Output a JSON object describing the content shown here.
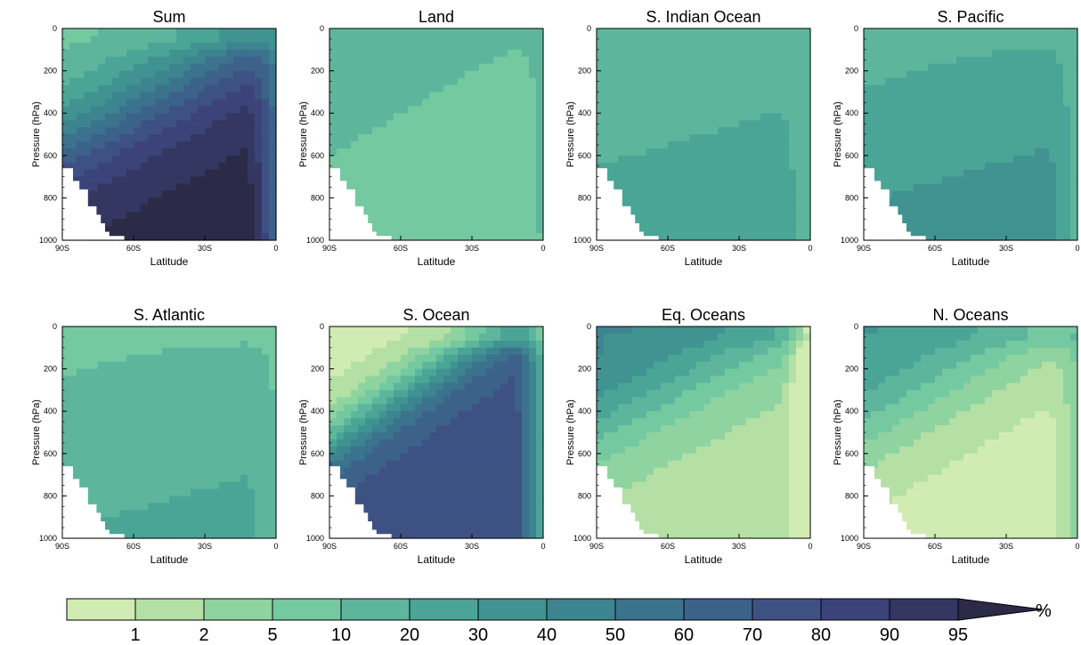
{
  "colorbar": {
    "levels": [
      "1",
      "2",
      "5",
      "10",
      "20",
      "30",
      "40",
      "50",
      "60",
      "70",
      "80",
      "90",
      "95"
    ],
    "unit": "%",
    "colors": [
      "#d1ecb3",
      "#b4e0a5",
      "#8fd3a0",
      "#74c9a0",
      "#5db69c",
      "#4aa597",
      "#409391",
      "#3c8490",
      "#3b728d",
      "#3c6289",
      "#3e5183",
      "#3c4379",
      "#343761",
      "#2b2a47"
    ]
  },
  "chart_data": [
    {
      "type": "heatmap",
      "title": "Sum",
      "ylabel": "Pressure (hPa)",
      "xlabel": "Latitude",
      "xlim": [
        "90S",
        "0"
      ],
      "xticks": [
        "90S",
        "60S",
        "30S",
        "0"
      ],
      "ylim": [
        0,
        1000
      ],
      "yticks": [
        "0",
        "200",
        "400",
        "600",
        "800",
        "1000"
      ],
      "field": {
        "top": 3,
        "bottom": 13,
        "band_top": 3,
        "band_bottom": 12,
        "mid_depth": 0.28,
        "sharp": 6,
        "skew": 0.55,
        "equator_low": 5
      }
    },
    {
      "type": "heatmap",
      "title": "Land",
      "ylabel": "Pressure (hPa)",
      "xlabel": "Latitude",
      "xlim": [
        "90S",
        "0"
      ],
      "xticks": [
        "90S",
        "60S",
        "30S",
        "0"
      ],
      "ylim": [
        0,
        1000
      ],
      "yticks": [
        "0",
        "200",
        "400",
        "600",
        "800",
        "1000"
      ],
      "field": {
        "top": 4,
        "bottom": 3,
        "band_top": 4,
        "band_bottom": 2,
        "mid_depth": 0.3,
        "sharp": 5,
        "skew": 0.6,
        "equator_low": 4
      }
    },
    {
      "type": "heatmap",
      "title": "S. Indian Ocean",
      "ylabel": "Pressure (hPa)",
      "xlabel": "Latitude",
      "xlim": [
        "90S",
        "0"
      ],
      "xticks": [
        "90S",
        "60S",
        "30S",
        "0"
      ],
      "ylim": [
        0,
        1000
      ],
      "yticks": [
        "0",
        "200",
        "400",
        "600",
        "800",
        "1000"
      ],
      "field": {
        "top": 4,
        "bottom": 5,
        "band_top": 4,
        "band_bottom": 5,
        "mid_depth": 0.5,
        "sharp": 4,
        "skew": 0.3,
        "equator_low": 3
      }
    },
    {
      "type": "heatmap",
      "title": "S. Pacific",
      "ylabel": "Pressure (hPa)",
      "xlabel": "Latitude",
      "xlim": [
        "90S",
        "0"
      ],
      "xticks": [
        "90S",
        "60S",
        "30S",
        "0"
      ],
      "ylim": [
        0,
        1000
      ],
      "yticks": [
        "0",
        "200",
        "400",
        "600",
        "800",
        "1000"
      ],
      "field": {
        "top": 4,
        "bottom": 6,
        "band_top": 4,
        "band_bottom": 5,
        "mid_depth": 0.4,
        "sharp": 4,
        "skew": 0.3,
        "equator_low": 3
      }
    },
    {
      "type": "heatmap",
      "title": "S. Atlantic",
      "ylabel": "Pressure (hPa)",
      "xlabel": "Latitude",
      "xlim": [
        "90S",
        "0"
      ],
      "xticks": [
        "90S",
        "60S",
        "30S",
        "0"
      ],
      "ylim": [
        0,
        1000
      ],
      "yticks": [
        "0",
        "200",
        "400",
        "600",
        "800",
        "1000"
      ],
      "field": {
        "top": 3,
        "bottom": 5,
        "band_top": 3,
        "band_bottom": 4,
        "mid_depth": 0.45,
        "sharp": 3,
        "skew": 0.3,
        "equator_low": 3
      }
    },
    {
      "type": "heatmap",
      "title": "S. Ocean",
      "ylabel": "Pressure (hPa)",
      "xlabel": "Latitude",
      "xlim": [
        "90S",
        "0"
      ],
      "xticks": [
        "90S",
        "60S",
        "30S",
        "0"
      ],
      "ylim": [
        0,
        1000
      ],
      "yticks": [
        "0",
        "200",
        "400",
        "600",
        "800",
        "1000"
      ],
      "field": {
        "top": 0,
        "bottom": 10,
        "band_top": 0,
        "band_bottom": 9,
        "mid_depth": 0.2,
        "sharp": 10,
        "skew": 0.7,
        "equator_low": 0
      }
    },
    {
      "type": "heatmap",
      "title": "Eq. Oceans",
      "ylabel": "Pressure (hPa)",
      "xlabel": "Latitude",
      "xlim": [
        "90S",
        "0"
      ],
      "xticks": [
        "90S",
        "60S",
        "30S",
        "0"
      ],
      "ylim": [
        0,
        1000
      ],
      "yticks": [
        "0",
        "200",
        "400",
        "600",
        "800",
        "1000"
      ],
      "field": {
        "top": 7,
        "bottom": 1,
        "band_top": 6,
        "band_bottom": 1,
        "mid_depth": 0.22,
        "sharp": 7,
        "skew": 0.55,
        "equator_low": -6
      }
    },
    {
      "type": "heatmap",
      "title": "N. Oceans",
      "ylabel": "Pressure (hPa)",
      "xlabel": "Latitude",
      "xlim": [
        "90S",
        "0"
      ],
      "xticks": [
        "90S",
        "60S",
        "30S",
        "0"
      ],
      "ylim": [
        0,
        1000
      ],
      "yticks": [
        "0",
        "200",
        "400",
        "600",
        "800",
        "1000"
      ],
      "field": {
        "top": 6,
        "bottom": 0,
        "band_top": 5,
        "band_bottom": 0,
        "mid_depth": 0.2,
        "sharp": 6,
        "skew": 0.6,
        "equator_low": 4
      }
    }
  ]
}
